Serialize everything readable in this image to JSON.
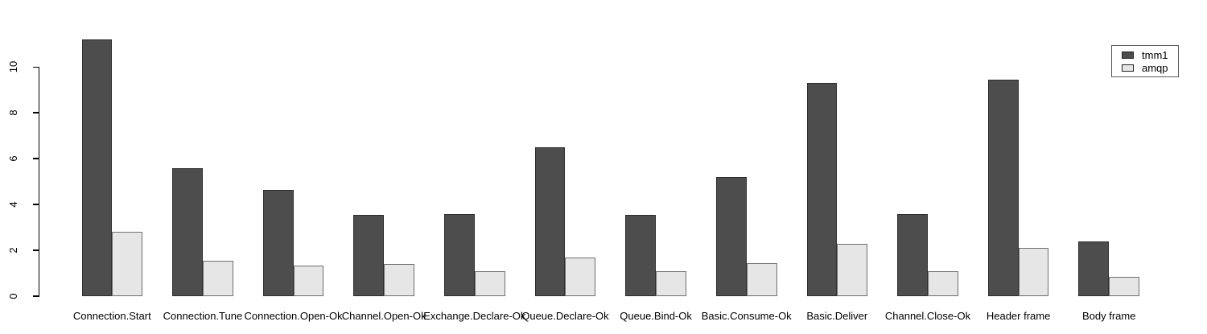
{
  "chart": {
    "background": "#ffffff",
    "axis_color": "#000000",
    "bar_border_dark": "#2e2e2e",
    "bar_border_light": "#6f6f6f",
    "legend_border": "#5a5a5a"
  },
  "chart_data": {
    "type": "bar",
    "title": "",
    "xlabel": "",
    "ylabel": "",
    "categories": [
      "Connection.Start",
      "Connection.Tune",
      "Connection.Open-Ok",
      "Channel.Open-Ok",
      "Exchange.Declare-Ok",
      "Queue.Declare-Ok",
      "Queue.Bind-Ok",
      "Basic.Consume-Ok",
      "Basic.Deliver",
      "Channel.Close-Ok",
      "Header frame",
      "Body frame"
    ],
    "series": [
      {
        "name": "tmm1",
        "color": "#4d4d4d",
        "values": [
          11.2,
          5.6,
          4.65,
          3.55,
          3.6,
          6.5,
          3.55,
          5.2,
          9.3,
          3.6,
          9.45,
          2.4
        ]
      },
      {
        "name": "amqp",
        "color": "#e6e6e6",
        "values": [
          2.8,
          1.55,
          1.35,
          1.4,
          1.1,
          1.7,
          1.1,
          1.45,
          2.3,
          1.1,
          2.1,
          0.85
        ]
      }
    ],
    "ylim": [
      0,
      11.35
    ],
    "yticks": [
      0,
      2,
      4,
      6,
      8,
      10
    ],
    "grid": false,
    "legend": {
      "position": "topright",
      "entries": [
        "tmm1",
        "amqp"
      ]
    }
  }
}
